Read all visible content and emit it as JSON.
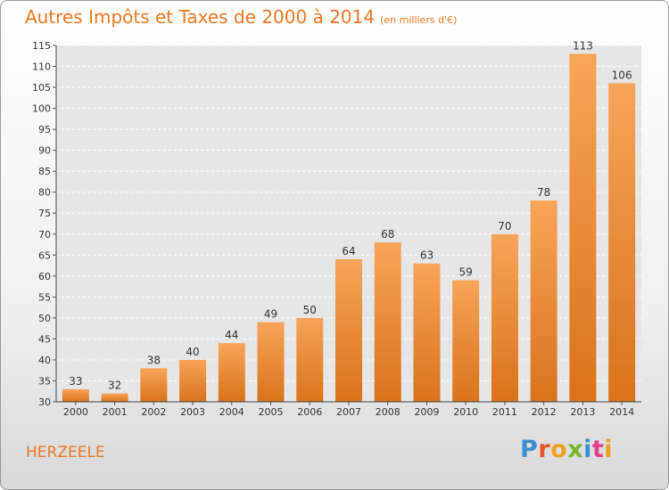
{
  "title": "Autres Impôts et Taxes de 2000 à 2014",
  "subtitle": "(en milliers d'€)",
  "commune": "HERZEELE",
  "logo": {
    "text": "Proxiti",
    "colors": [
      "#3a8fd6",
      "#e8572a",
      "#f0a020",
      "#76b82a",
      "#3a8fd6",
      "#e83e8c",
      "#f0a020"
    ]
  },
  "colors": {
    "bar_top": "#f7a55a",
    "bar_bottom": "#d9731a",
    "title": "#ee7722"
  },
  "chart_data": {
    "type": "bar",
    "categories": [
      "2000",
      "2001",
      "2002",
      "2003",
      "2004",
      "2005",
      "2006",
      "2007",
      "2008",
      "2009",
      "2010",
      "2011",
      "2012",
      "2013",
      "2014"
    ],
    "values": [
      33,
      32,
      38,
      40,
      44,
      49,
      50,
      64,
      68,
      63,
      59,
      70,
      78,
      113,
      106
    ],
    "ylim": [
      30,
      115
    ],
    "yticks": [
      30,
      35,
      40,
      45,
      50,
      55,
      60,
      65,
      70,
      75,
      80,
      85,
      90,
      95,
      100,
      105,
      110,
      115
    ],
    "grid": true
  }
}
